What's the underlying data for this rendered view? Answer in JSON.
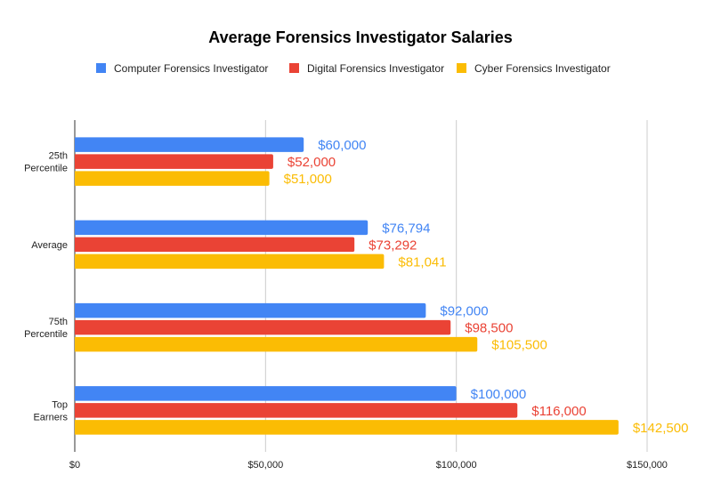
{
  "chart_data": {
    "type": "bar",
    "orientation": "horizontal",
    "title": "Average Forensics Investigator Salaries",
    "categories": [
      [
        "25th",
        "Percentile"
      ],
      [
        "Average"
      ],
      [
        "75th",
        "Percentile"
      ],
      [
        "Top",
        "Earners"
      ]
    ],
    "series": [
      {
        "name": "Computer Forensics Investigator",
        "color": "#4285F4",
        "values": [
          60000,
          76794,
          92000,
          100000
        ],
        "labels": [
          "$60,000",
          "$76,794",
          "$92,000",
          "$100,000"
        ]
      },
      {
        "name": "Digital Forensics Investigator",
        "color": "#EA4335",
        "values": [
          52000,
          73292,
          98500,
          116000
        ],
        "labels": [
          "$52,000",
          "$73,292",
          "$98,500",
          "$116,000"
        ]
      },
      {
        "name": "Cyber Forensics Investigator",
        "color": "#FBBC04",
        "values": [
          51000,
          81041,
          105500,
          142500
        ],
        "labels": [
          "$51,000",
          "$81,041",
          "$105,500",
          "$142,500"
        ]
      }
    ],
    "xlim": [
      0,
      150000
    ],
    "xticks": [
      0,
      50000,
      100000,
      150000
    ],
    "xtick_labels": [
      "$0",
      "$50,000",
      "$100,000",
      "$150,000"
    ],
    "xlabel": "",
    "ylabel": "",
    "grid": true,
    "legend_position": "top"
  }
}
